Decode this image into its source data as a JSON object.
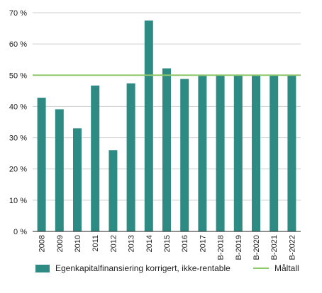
{
  "chart_data": {
    "type": "bar",
    "categories": [
      "2008",
      "2009",
      "2010",
      "2011",
      "2012",
      "2013",
      "2014",
      "2015",
      "2016",
      "2017",
      "B-2018",
      "B-2019",
      "B-2020",
      "B-2021",
      "B-2022"
    ],
    "series": [
      {
        "name": "Egenkapitalfinansiering korrigert, ikke-rentable",
        "color": "#2e8b84",
        "values": [
          42.8,
          39.1,
          33.0,
          46.7,
          26.0,
          47.4,
          67.5,
          52.2,
          48.8,
          49.8,
          50.0,
          50.0,
          50.0,
          50.0,
          50.0
        ]
      }
    ],
    "reference_line": {
      "name": "Måltall",
      "value": 50,
      "color": "#8cc76a"
    },
    "ylim": [
      0,
      70
    ],
    "y_ticks": [
      "0 %",
      "10 %",
      "20 %",
      "30 %",
      "40 %",
      "50 %",
      "60 %",
      "70 %"
    ],
    "title": "",
    "xlabel": "",
    "ylabel": "",
    "grid": true,
    "legend_position": "bottom"
  }
}
